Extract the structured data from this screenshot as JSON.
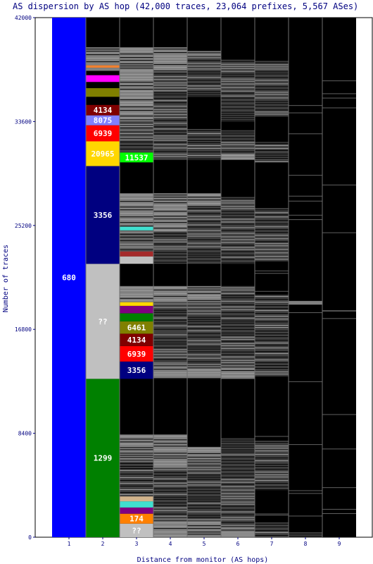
{
  "chart_data": {
    "type": "bar",
    "title": "AS dispersion by AS hop (42,000 traces, 23,064 prefixes, 5,567 ASes)",
    "xlabel": "Distance from monitor (AS hops)",
    "ylabel": "Number of traces",
    "ylim": [
      0,
      42000
    ],
    "yticks": [
      "0",
      "8400",
      "16800",
      "25200",
      "33600",
      "42000"
    ],
    "categories": [
      "1",
      "2",
      "3",
      "4",
      "5",
      "6",
      "7",
      "8",
      "9"
    ],
    "columns": [
      {
        "hop": "1",
        "segments": [
          {
            "start": 0,
            "end": 42000,
            "color": "#0000ff",
            "label": "680"
          }
        ]
      },
      {
        "hop": "2",
        "segments": [
          {
            "start": 0,
            "end": 12800,
            "color": "#008000",
            "label": "1299"
          },
          {
            "start": 12800,
            "end": 22100,
            "color": "#c0c0c0",
            "label": "??"
          },
          {
            "start": 22100,
            "end": 30000,
            "color": "#000080",
            "label": "3356"
          },
          {
            "start": 30000,
            "end": 32000,
            "color": "#ffd700",
            "label": "20965"
          },
          {
            "start": 32000,
            "end": 33300,
            "color": "#ff0000",
            "label": "6939"
          },
          {
            "start": 33300,
            "end": 34100,
            "color": "#8080ff",
            "label": "8075"
          },
          {
            "start": 34100,
            "end": 34950,
            "color": "#800000",
            "label": "4134"
          },
          {
            "start": 34950,
            "end": 35600,
            "color": "#000000",
            "label": ""
          },
          {
            "start": 35600,
            "end": 36300,
            "color": "#808000",
            "label": ""
          },
          {
            "start": 36300,
            "end": 36800,
            "color": "#000000",
            "label": ""
          },
          {
            "start": 36800,
            "end": 37350,
            "color": "#ff00ff",
            "label": ""
          },
          {
            "start": 37350,
            "end": 37700,
            "color": "#000000",
            "label": ""
          },
          {
            "start": 37700,
            "end": 37950,
            "color": "#808080",
            "label": ""
          },
          {
            "start": 37950,
            "end": 38150,
            "color": "#f08030",
            "label": ""
          },
          {
            "start": 38150,
            "end": 39600,
            "color": "#808080",
            "label": ""
          }
        ]
      },
      {
        "hop": "3",
        "segments": [
          {
            "start": 0,
            "end": 1100,
            "color": "#c0c0c0",
            "label": "??"
          },
          {
            "start": 1100,
            "end": 1900,
            "color": "#ff8000",
            "label": "174"
          },
          {
            "start": 1900,
            "end": 2400,
            "color": "#800080",
            "label": ""
          },
          {
            "start": 2400,
            "end": 2900,
            "color": "#40e0d0",
            "label": ""
          },
          {
            "start": 2900,
            "end": 3300,
            "color": "#d2b48c",
            "label": ""
          },
          {
            "start": 3300,
            "end": 6100,
            "color": "#404040",
            "label": ""
          },
          {
            "start": 6100,
            "end": 8300,
            "color": "#808080",
            "label": ""
          },
          {
            "start": 12800,
            "end": 14200,
            "color": "#000080",
            "label": "3356"
          },
          {
            "start": 14200,
            "end": 15450,
            "color": "#ff0000",
            "label": "6939"
          },
          {
            "start": 15450,
            "end": 16450,
            "color": "#800000",
            "label": "4134"
          },
          {
            "start": 16450,
            "end": 17450,
            "color": "#808000",
            "label": "6461"
          },
          {
            "start": 17450,
            "end": 18100,
            "color": "#008000",
            "label": ""
          },
          {
            "start": 18100,
            "end": 18700,
            "color": "#800080",
            "label": ""
          },
          {
            "start": 18700,
            "end": 19000,
            "color": "#ffd700",
            "label": ""
          },
          {
            "start": 19000,
            "end": 20300,
            "color": "#808080",
            "label": ""
          },
          {
            "start": 22100,
            "end": 22700,
            "color": "#c0c0c0",
            "label": ""
          },
          {
            "start": 22700,
            "end": 23100,
            "color": "#a52a2a",
            "label": ""
          },
          {
            "start": 23100,
            "end": 24800,
            "color": "#606060",
            "label": ""
          },
          {
            "start": 24800,
            "end": 25100,
            "color": "#40e0d0",
            "label": ""
          },
          {
            "start": 25100,
            "end": 27800,
            "color": "#808080",
            "label": ""
          },
          {
            "start": 30300,
            "end": 31100,
            "color": "#00ff00",
            "label": "11537"
          },
          {
            "start": 31100,
            "end": 33800,
            "color": "#404040",
            "label": ""
          },
          {
            "start": 33800,
            "end": 39600,
            "color": "#808080",
            "label": ""
          }
        ]
      },
      {
        "hop": "4",
        "segments": [
          {
            "start": 0,
            "end": 1300,
            "color": "#808080",
            "label": ""
          },
          {
            "start": 1300,
            "end": 5600,
            "color": "#404040",
            "label": ""
          },
          {
            "start": 5600,
            "end": 8300,
            "color": "#808080",
            "label": ""
          },
          {
            "start": 12800,
            "end": 14000,
            "color": "#808080",
            "label": ""
          },
          {
            "start": 14000,
            "end": 16500,
            "color": "#404040",
            "label": ""
          },
          {
            "start": 16500,
            "end": 19000,
            "color": "#404040",
            "label": ""
          },
          {
            "start": 19000,
            "end": 20300,
            "color": "#808080",
            "label": ""
          },
          {
            "start": 22100,
            "end": 24700,
            "color": "#404040",
            "label": ""
          },
          {
            "start": 24700,
            "end": 27800,
            "color": "#808080",
            "label": ""
          },
          {
            "start": 30500,
            "end": 33600,
            "color": "#404040",
            "label": ""
          },
          {
            "start": 33600,
            "end": 37600,
            "color": "#404040",
            "label": ""
          },
          {
            "start": 37600,
            "end": 39600,
            "color": "#808080",
            "label": ""
          }
        ]
      },
      {
        "hop": "5",
        "segments": [
          {
            "start": 0,
            "end": 1300,
            "color": "#808080",
            "label": ""
          },
          {
            "start": 1300,
            "end": 6300,
            "color": "#404040",
            "label": ""
          },
          {
            "start": 6300,
            "end": 7300,
            "color": "#808080",
            "label": ""
          },
          {
            "start": 12800,
            "end": 14000,
            "color": "#808080",
            "label": ""
          },
          {
            "start": 14000,
            "end": 19000,
            "color": "#404040",
            "label": ""
          },
          {
            "start": 19000,
            "end": 20300,
            "color": "#808080",
            "label": ""
          },
          {
            "start": 22100,
            "end": 26700,
            "color": "#404040",
            "label": ""
          },
          {
            "start": 26700,
            "end": 27800,
            "color": "#808080",
            "label": ""
          },
          {
            "start": 30500,
            "end": 33000,
            "color": "#404040",
            "label": ""
          },
          {
            "start": 35600,
            "end": 38900,
            "color": "#404040",
            "label": ""
          },
          {
            "start": 38900,
            "end": 39300,
            "color": "#808080",
            "label": ""
          }
        ]
      },
      {
        "hop": "6",
        "segments": [
          {
            "start": 0,
            "end": 1000,
            "color": "#808080",
            "label": ""
          },
          {
            "start": 1000,
            "end": 8000,
            "color": "#404040",
            "label": ""
          },
          {
            "start": 12800,
            "end": 13900,
            "color": "#808080",
            "label": ""
          },
          {
            "start": 13900,
            "end": 20300,
            "color": "#404040",
            "label": ""
          },
          {
            "start": 22100,
            "end": 27500,
            "color": "#404040",
            "label": ""
          },
          {
            "start": 30500,
            "end": 31000,
            "color": "#808080",
            "label": ""
          },
          {
            "start": 31000,
            "end": 32900,
            "color": "#404040",
            "label": ""
          },
          {
            "start": 33600,
            "end": 38600,
            "color": "#404040",
            "label": ""
          }
        ]
      },
      {
        "hop": "7",
        "segments": [
          {
            "start": 0,
            "end": 1200,
            "color": "#404040",
            "label": ""
          },
          {
            "start": 3800,
            "end": 7800,
            "color": "#404040",
            "label": ""
          },
          {
            "start": 13000,
            "end": 19600,
            "color": "#404040",
            "label": ""
          },
          {
            "start": 22300,
            "end": 26600,
            "color": "#404040",
            "label": ""
          },
          {
            "start": 30300,
            "end": 31800,
            "color": "#404040",
            "label": ""
          },
          {
            "start": 34000,
            "end": 38500,
            "color": "#404040",
            "label": ""
          }
        ]
      },
      {
        "hop": "8",
        "segments": [
          {
            "start": 0,
            "end": 400,
            "color": "#404040",
            "label": ""
          },
          {
            "start": 18800,
            "end": 19100,
            "color": "#808080",
            "label": ""
          }
        ]
      },
      {
        "hop": "9",
        "segments": []
      }
    ]
  }
}
